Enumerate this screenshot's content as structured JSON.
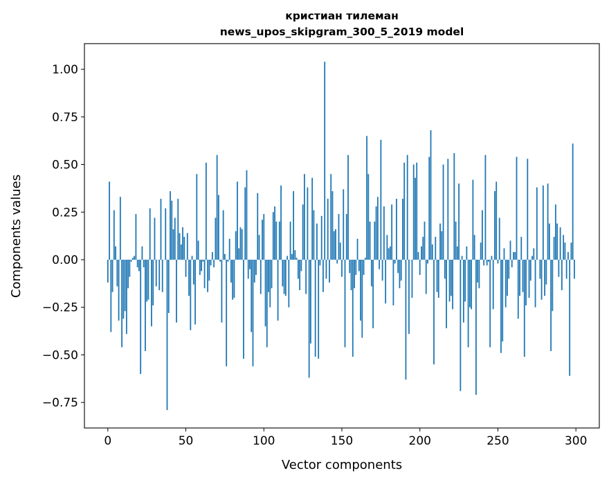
{
  "chart_data": {
    "type": "bar",
    "title": "кристиан тилеман",
    "subtitle": "news_upos_skipgram_300_5_2019 model",
    "xlabel": "Vector components",
    "ylabel": "Components values",
    "xlim": [
      -15,
      315
    ],
    "ylim": [
      -0.884,
      1.135
    ],
    "grid": false,
    "bar_color": "#1f77b4",
    "xticks": [
      "0",
      "50",
      "100",
      "150",
      "200",
      "250",
      "300"
    ],
    "xtick_values": [
      0,
      50,
      100,
      150,
      200,
      250,
      300
    ],
    "yticks": [
      "−0.75",
      "−0.50",
      "−0.25",
      "0.00",
      "0.25",
      "0.50",
      "0.75",
      "1.00"
    ],
    "ytick_values": [
      -0.75,
      -0.5,
      -0.25,
      0,
      0.25,
      0.5,
      0.75,
      1.0
    ],
    "values": [
      -0.12,
      0.41,
      -0.38,
      -0.17,
      0.26,
      0.07,
      -0.14,
      -0.32,
      0.33,
      -0.46,
      -0.31,
      -0.27,
      -0.39,
      -0.15,
      -0.09,
      -0.01,
      0.01,
      0.02,
      0.24,
      -0.04,
      -0.06,
      -0.6,
      0.07,
      -0.04,
      -0.48,
      -0.22,
      -0.21,
      0.27,
      -0.35,
      -0.24,
      0.22,
      -0.14,
      0.0,
      -0.16,
      0.32,
      -0.17,
      0.0,
      0.27,
      -0.79,
      -0.28,
      0.36,
      0.31,
      0.16,
      0.22,
      -0.33,
      0.32,
      0.14,
      0.08,
      0.17,
      0.12,
      -0.09,
      0.14,
      -0.19,
      -0.37,
      0.02,
      -0.13,
      -0.34,
      0.45,
      0.1,
      -0.08,
      -0.06,
      -0.01,
      -0.15,
      0.51,
      -0.17,
      -0.11,
      -0.03,
      0.04,
      -0.04,
      0.22,
      0.55,
      0.34,
      -0.01,
      -0.33,
      0.26,
      0.03,
      -0.56,
      -0.01,
      0.11,
      -0.12,
      -0.21,
      -0.2,
      0.15,
      0.41,
      0.06,
      0.17,
      0.16,
      -0.52,
      0.38,
      0.47,
      -0.1,
      -0.05,
      -0.38,
      -0.56,
      -0.12,
      -0.08,
      0.35,
      0.13,
      -0.18,
      0.21,
      0.24,
      -0.35,
      -0.46,
      -0.17,
      -0.25,
      -0.15,
      0.25,
      0.28,
      0.2,
      -0.32,
      0.2,
      0.39,
      -0.14,
      -0.18,
      -0.19,
      0.02,
      -0.25,
      0.2,
      0.03,
      0.36,
      0.05,
      0.01,
      -0.1,
      -0.16,
      -0.06,
      0.29,
      0.45,
      -0.18,
      0.38,
      -0.62,
      -0.44,
      0.43,
      0.26,
      -0.51,
      0.19,
      -0.52,
      -0.03,
      0.23,
      -0.17,
      1.04,
      -0.1,
      0.32,
      -0.12,
      0.45,
      0.36,
      0.15,
      0.16,
      -0.02,
      0.24,
      0.09,
      -0.09,
      0.37,
      -0.46,
      0.24,
      0.55,
      -0.07,
      -0.16,
      -0.51,
      -0.15,
      -0.08,
      0.11,
      -0.06,
      -0.32,
      -0.41,
      -0.08,
      0.01,
      0.65,
      0.45,
      0.2,
      -0.14,
      -0.36,
      0.2,
      0.28,
      0.33,
      -0.05,
      0.63,
      -0.11,
      0.28,
      -0.23,
      0.13,
      0.06,
      0.07,
      0.29,
      -0.24,
      -0.02,
      0.32,
      -0.07,
      -0.15,
      -0.11,
      0.32,
      0.51,
      -0.63,
      0.55,
      -0.39,
      0.0,
      -0.2,
      0.5,
      0.43,
      0.51,
      0.04,
      -0.08,
      0.07,
      0.12,
      0.2,
      -0.18,
      -0.02,
      0.54,
      0.68,
      0.08,
      -0.55,
      0.12,
      -0.17,
      -0.2,
      0.19,
      0.15,
      0.5,
      -0.1,
      -0.36,
      0.53,
      -0.22,
      -0.19,
      -0.26,
      0.56,
      0.2,
      0.07,
      0.4,
      -0.69,
      0.02,
      -0.33,
      -0.22,
      0.07,
      -0.46,
      -0.25,
      -0.26,
      0.42,
      0.13,
      -0.71,
      -0.12,
      -0.15,
      0.09,
      0.26,
      -0.03,
      0.55,
      -0.03,
      -0.01,
      -0.46,
      0.02,
      -0.26,
      0.36,
      0.41,
      -0.02,
      0.22,
      -0.49,
      -0.43,
      0.06,
      -0.25,
      -0.19,
      -0.1,
      0.1,
      -0.04,
      0.04,
      0.04,
      0.54,
      -0.31,
      -0.19,
      0.12,
      -0.17,
      -0.51,
      -0.24,
      0.53,
      -0.2,
      -0.11,
      0.02,
      0.06,
      -0.25,
      0.38,
      0.0,
      -0.1,
      -0.21,
      0.39,
      -0.19,
      -0.13,
      0.4,
      0.19,
      -0.48,
      -0.27,
      0.12,
      0.29,
      0.19,
      -0.09,
      0.17,
      -0.16,
      0.13,
      0.09,
      -0.1,
      0.04,
      -0.61,
      0.09,
      0.61,
      -0.1
    ]
  }
}
